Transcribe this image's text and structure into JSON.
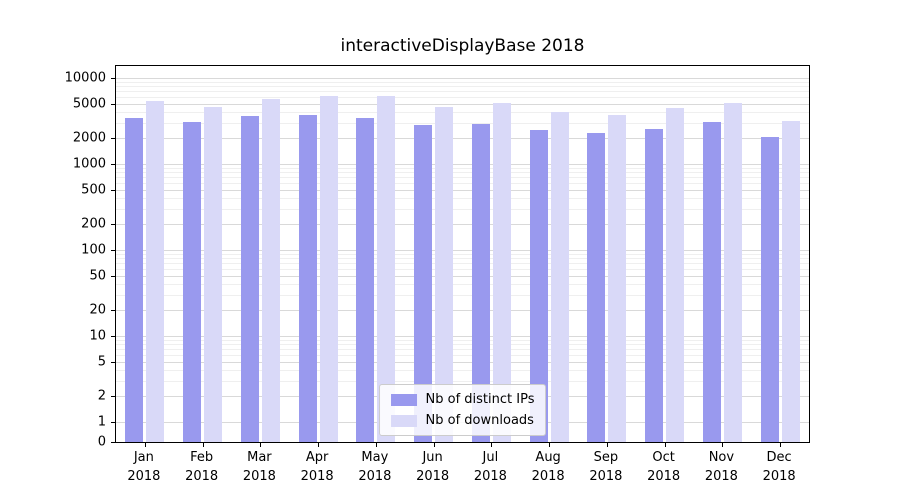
{
  "chart_data": {
    "type": "bar",
    "title": "interactiveDisplayBase 2018",
    "categories": [
      "Jan",
      "Feb",
      "Mar",
      "Apr",
      "May",
      "Jun",
      "Jul",
      "Aug",
      "Sep",
      "Oct",
      "Nov",
      "Dec"
    ],
    "year_label": "2018",
    "series": [
      {
        "name": "Nb of distinct IPs",
        "color": "#9999ee",
        "values": [
          3400,
          3100,
          3600,
          3700,
          3400,
          2850,
          2950,
          2500,
          2300,
          2550,
          3100,
          2050
        ]
      },
      {
        "name": "Nb of downloads",
        "color": "#d9d9f8",
        "values": [
          5400,
          4600,
          5700,
          6200,
          6200,
          4600,
          5100,
          4050,
          3700,
          4500,
          5100,
          3150
        ]
      }
    ],
    "yscale": "symlog",
    "yticks": [
      0,
      1,
      2,
      5,
      10,
      20,
      50,
      100,
      200,
      500,
      1000,
      2000,
      5000,
      10000
    ],
    "xlabel": "",
    "ylabel": "",
    "grid": true,
    "legend_position": "lower center",
    "colors": {
      "grid_major": "#d9d9d9",
      "grid_minor": "#efefef",
      "axis": "#000000",
      "legend_border": "#cccccc"
    }
  }
}
